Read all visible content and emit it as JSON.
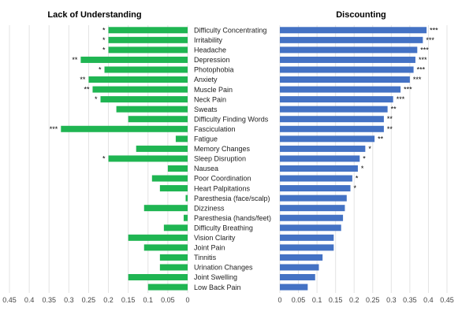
{
  "chart_data": [
    {
      "type": "bar",
      "orientation": "horizontal",
      "title": "Lack of Understanding",
      "direction": "reversed",
      "xlim": [
        0,
        0.45
      ],
      "ticks": [
        "0.45",
        "0.4",
        "0.35",
        "0.3",
        "0.25",
        "0.2",
        "0.15",
        "0.1",
        "0.05",
        "0"
      ],
      "color": "#1fb552",
      "values": [
        0.2,
        0.2,
        0.2,
        0.27,
        0.21,
        0.25,
        0.24,
        0.22,
        0.18,
        0.15,
        0.32,
        0.03,
        0.13,
        0.2,
        0.05,
        0.09,
        0.07,
        0.005,
        0.11,
        0.01,
        0.06,
        0.15,
        0.11,
        0.07,
        0.07,
        0.15,
        0.1
      ],
      "significance": [
        "*",
        "*",
        "*",
        "**",
        "*",
        "**",
        "**",
        "*",
        "",
        "",
        "***",
        "",
        "",
        "*",
        "",
        "",
        "",
        "",
        "",
        "",
        "",
        "",
        "",
        "",
        "",
        "",
        ""
      ]
    },
    {
      "type": "bar",
      "orientation": "horizontal",
      "title": "Discounting",
      "direction": "normal",
      "xlim": [
        0,
        0.45
      ],
      "ticks": [
        "0",
        "0.05",
        "0.1",
        "0.15",
        "0.2",
        "0.25",
        "0.3",
        "0.35",
        "0.4",
        "0.45"
      ],
      "color": "#4472c4",
      "values": [
        0.395,
        0.385,
        0.37,
        0.365,
        0.36,
        0.35,
        0.325,
        0.305,
        0.29,
        0.28,
        0.28,
        0.255,
        0.23,
        0.215,
        0.21,
        0.195,
        0.19,
        0.18,
        0.175,
        0.17,
        0.165,
        0.145,
        0.145,
        0.115,
        0.105,
        0.095,
        0.075
      ],
      "significance": [
        "***",
        "***",
        "***",
        "***",
        "***",
        "***",
        "***",
        "***",
        "**",
        "**",
        "**",
        "**",
        "*",
        "*",
        "*",
        "*",
        "*",
        "",
        "",
        "",
        "",
        "",
        "",
        "",
        "",
        "",
        ""
      ]
    }
  ],
  "categories": [
    "Difficulty Concentrating",
    "Irritability",
    "Headache",
    "Depression",
    "Photophobia",
    "Anxiety",
    "Muscle Pain",
    "Neck Pain",
    "Sweats",
    "Difficulty Finding Words",
    "Fasciculation",
    "Fatigue",
    "Memory Changes",
    "Sleep Disruption",
    "Nausea",
    "Poor Coordination",
    "Heart Palpitations",
    "Paresthesia (face/scalp)",
    "Dizziness",
    "Paresthesia (hands/feet)",
    "Difficulty Breathing",
    "Vision Clarity",
    "Joint Pain",
    "Tinnitis",
    "Urination Changes",
    "Joint Swelling",
    "Low Back Pain"
  ]
}
